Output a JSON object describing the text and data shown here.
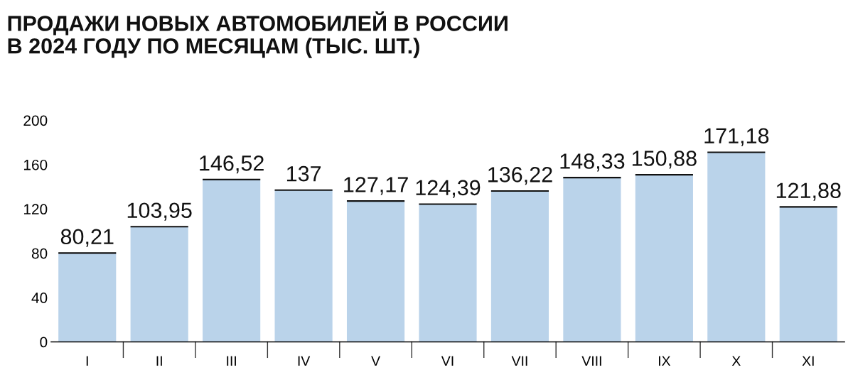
{
  "chart_data": {
    "type": "bar",
    "title": "ПРОДАЖИ НОВЫХ АВТОМОБИЛЕЙ В РОССИИ\nВ 2024 ГОДУ ПО МЕСЯЦАМ (ТЫС. ШТ.)",
    "categories": [
      "I",
      "II",
      "III",
      "IV",
      "V",
      "VI",
      "VII",
      "VIII",
      "IX",
      "X",
      "XI"
    ],
    "values": [
      80.21,
      103.95,
      146.52,
      137,
      127.17,
      124.39,
      136.22,
      148.33,
      150.88,
      171.18,
      121.88
    ],
    "value_labels": [
      "80,21",
      "103,95",
      "146,52",
      "137",
      "127,17",
      "124,39",
      "136,22",
      "148,33",
      "150,88",
      "171,18",
      "121,88"
    ],
    "color": "#bad3ea",
    "ylim": [
      0,
      200
    ],
    "yticks": [
      0,
      40,
      80,
      120,
      160,
      200
    ],
    "grid": false
  }
}
